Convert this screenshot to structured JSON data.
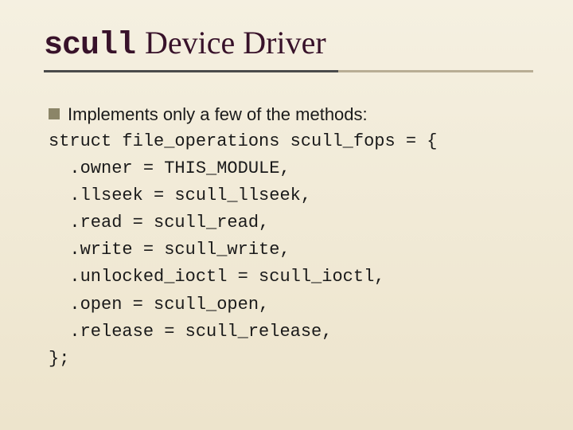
{
  "title": {
    "mono": "scull",
    "serif": "Device Driver",
    "title_fontsize": 40,
    "title_color": "#38122a",
    "underline_dark_color": "#4a4a4a",
    "underline_light_color": "#b8ad94"
  },
  "bullet": {
    "text": "Implements only a few of the methods:",
    "square_color": "#8b8568",
    "text_color": "#1a1a1a",
    "fontsize": 22
  },
  "code": {
    "lines": [
      "struct file_operations scull_fops = {",
      "  .owner = THIS_MODULE,",
      "  .llseek = scull_llseek,",
      "  .read = scull_read,",
      "  .write = scull_write,",
      "  .unlocked_ioctl = scull_ioctl,",
      "  .open = scull_open,",
      "  .release = scull_release,",
      "};"
    ],
    "font_family": "Courier New",
    "fontsize": 22,
    "text_color": "#1a1a1a"
  },
  "background": {
    "gradient_top": "#f5f0e1",
    "gradient_bottom": "#ede4cc"
  }
}
